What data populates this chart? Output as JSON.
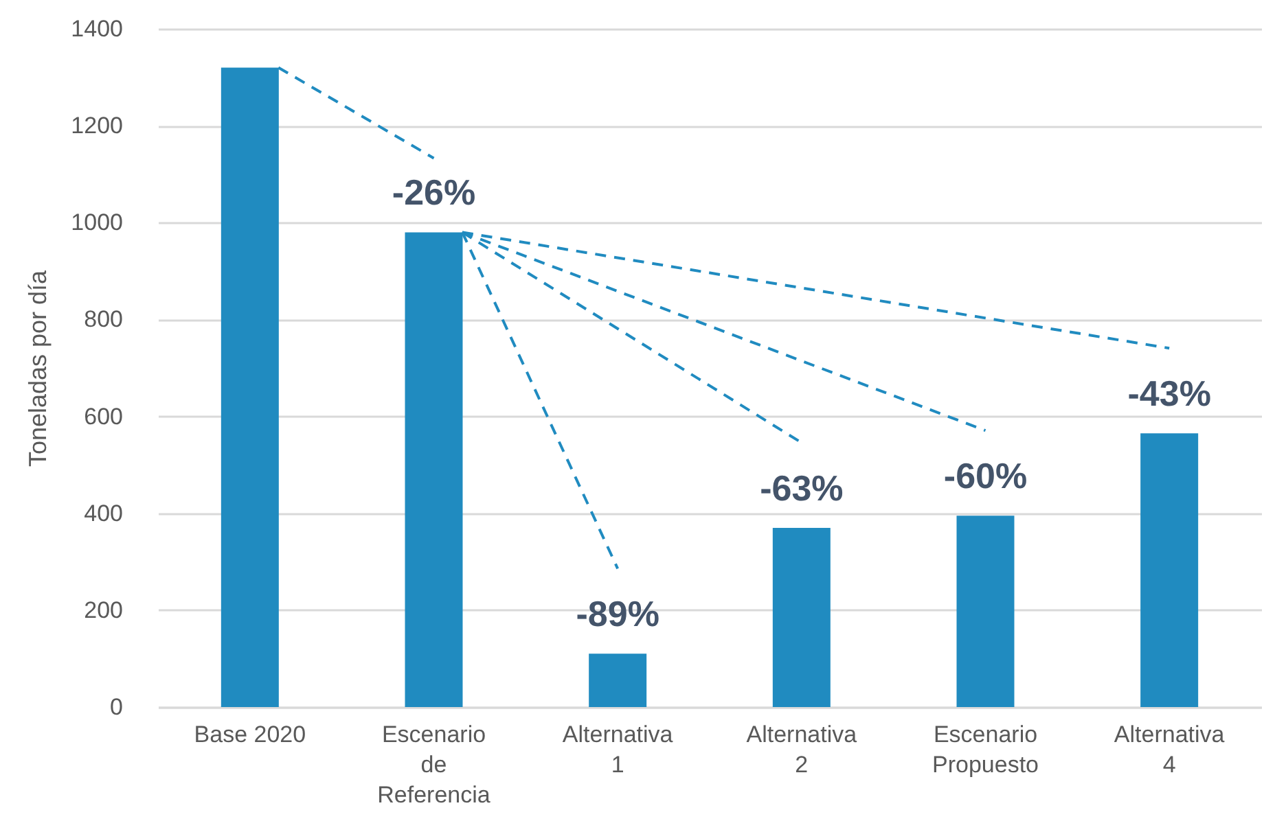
{
  "chart_data": {
    "type": "bar",
    "ylabel": "Toneladas por día",
    "categories": [
      "Base 2020",
      "Escenario de Referencia",
      "Alternativa 1",
      "Alternativa 2",
      "Escenario Propuesto",
      "Alternativa 4"
    ],
    "values": [
      1320,
      980,
      110,
      370,
      395,
      565
    ],
    "annotations": [
      {
        "text": "-26%",
        "x": "Escenario de Referencia",
        "y": 980
      },
      {
        "text": "-89%",
        "x": "Alternativa 1",
        "y": 110
      },
      {
        "text": "-63%",
        "x": "Alternativa 2",
        "y": 370
      },
      {
        "text": "-60%",
        "x": "Escenario Propuesto",
        "y": 395
      },
      {
        "text": "-43%",
        "x": "Alternativa 4",
        "y": 565
      }
    ],
    "color": "#208bc0",
    "ylim": [
      0,
      1400
    ],
    "yticks": [
      0,
      200,
      400,
      600,
      800,
      1000,
      1200,
      1400
    ],
    "grid": "y"
  }
}
